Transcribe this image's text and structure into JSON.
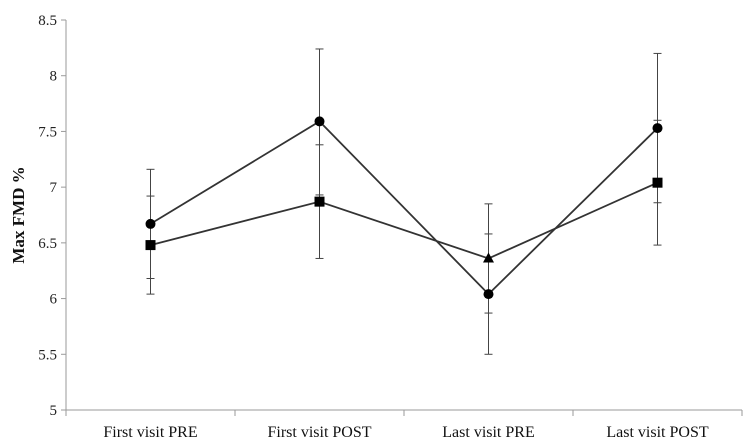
{
  "chart_data": {
    "type": "line",
    "title": "",
    "xlabel": "",
    "ylabel": "Max FMD %",
    "categories": [
      "First visit PRE",
      "First visit POST",
      "Last visit PRE",
      "Last visit POST"
    ],
    "ylim": [
      5,
      8.5
    ],
    "yticks": [
      "5",
      "5.5",
      "6",
      "6.5",
      "7",
      "7.5",
      "8",
      "8.5"
    ],
    "grid": false,
    "legend": "none",
    "series": [
      {
        "marker": "circle",
        "values": [
          6.67,
          7.59,
          6.04,
          7.53
        ],
        "err_low": [
          6.18,
          6.93,
          5.5,
          6.86
        ],
        "err_high": [
          7.16,
          8.24,
          6.58,
          8.2
        ]
      },
      {
        "marker": "square",
        "values": [
          6.48,
          6.87,
          null,
          7.04
        ],
        "err_low": [
          6.04,
          6.36,
          null,
          6.48
        ],
        "err_high": [
          6.92,
          7.38,
          null,
          7.6
        ]
      },
      {
        "marker": "triangle",
        "values": [
          null,
          null,
          6.36,
          null
        ],
        "err_low": [
          null,
          null,
          5.87,
          null
        ],
        "err_high": [
          null,
          null,
          6.85,
          null
        ]
      }
    ],
    "colors": {
      "line": "#333333",
      "marker": "#000000"
    }
  }
}
